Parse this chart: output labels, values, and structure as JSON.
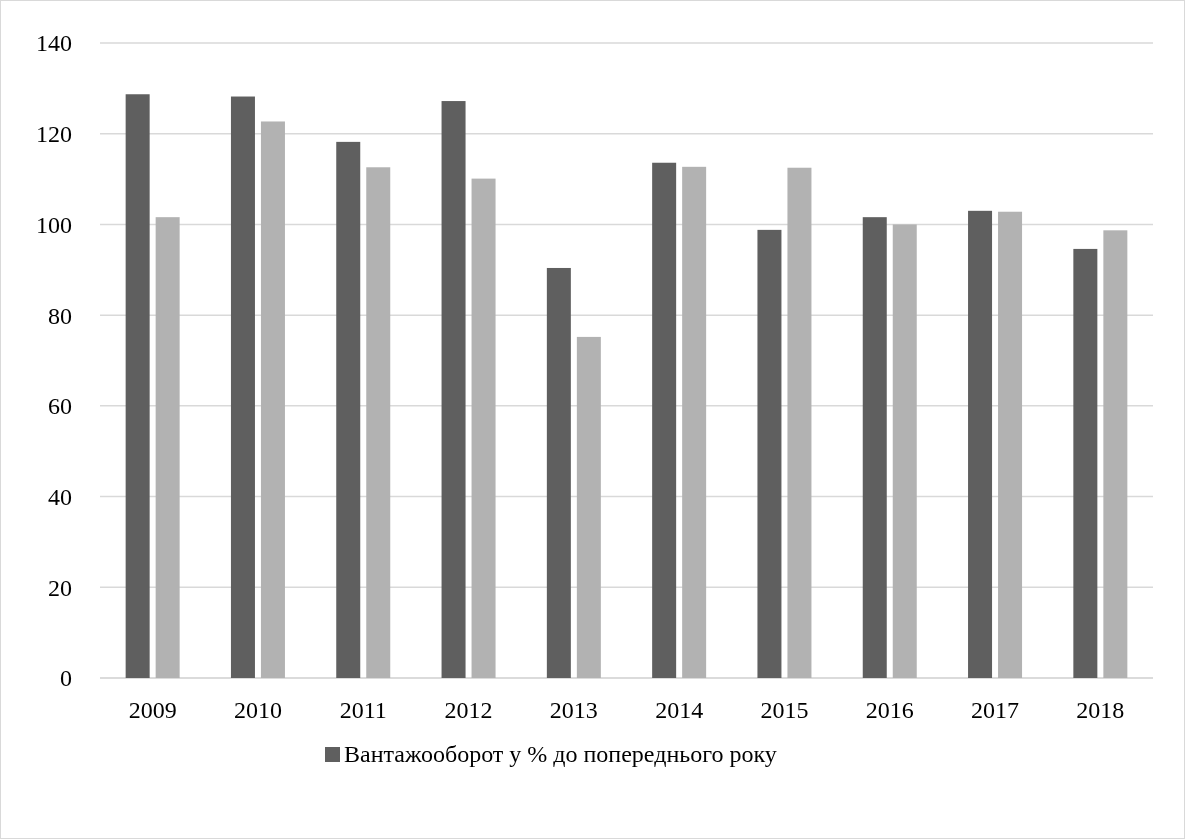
{
  "chart_data": {
    "type": "bar",
    "categories": [
      "2009",
      "2010",
      "2011",
      "2012",
      "2013",
      "2014",
      "2015",
      "2016",
      "2017",
      "2018"
    ],
    "series": [
      {
        "name": "Вантажооборот у % до попереднього року",
        "color": "#5f5f5f",
        "values": [
          128.7,
          128.2,
          118.2,
          127.2,
          90.4,
          113.6,
          98.8,
          101.6,
          103,
          94.6
        ]
      },
      {
        "color": "#b2b2b2",
        "values": [
          101.6,
          122.7,
          112.6,
          110.1,
          75.2,
          112.7,
          112.5,
          100,
          102.8,
          98.7
        ]
      }
    ],
    "ylim": [
      0,
      140
    ],
    "yticks": [
      0,
      20,
      40,
      60,
      80,
      100,
      120,
      140
    ],
    "grid": "y",
    "legend": "bottom"
  }
}
